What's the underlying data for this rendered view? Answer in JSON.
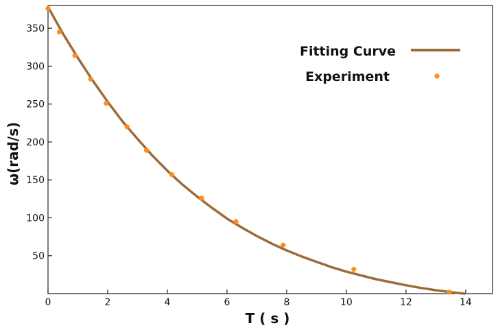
{
  "chart_data": {
    "type": "line",
    "xlabel": "T ( s )",
    "ylabel": "ω(rad/s)",
    "xlim": [
      0,
      14.9
    ],
    "ylim": [
      0,
      380
    ],
    "xticks": [
      0,
      2,
      4,
      6,
      8,
      10,
      12,
      14
    ],
    "yticks": [
      50,
      100,
      150,
      200,
      250,
      300,
      350
    ],
    "grid": false,
    "legend_position": "top-right",
    "colors": {
      "curve": "#9c6b3a",
      "points": "#ff8c1a"
    },
    "series": [
      {
        "name": "Fitting Curve",
        "kind": "line",
        "x": [
          0,
          0.5,
          1,
          1.5,
          2,
          2.5,
          3,
          3.5,
          4,
          4.5,
          5,
          5.5,
          6,
          6.5,
          7,
          7.5,
          8,
          8.5,
          9,
          9.5,
          10,
          10.5,
          11,
          11.5,
          12,
          12.5,
          13,
          13.5,
          13.95
        ],
        "y": [
          378,
          343,
          311,
          281,
          253,
          227,
          204,
          182,
          162,
          144,
          128,
          113,
          99,
          87,
          76,
          66,
          57,
          49,
          42,
          35,
          29,
          24,
          19,
          15,
          11,
          7.5,
          4.5,
          2,
          0
        ]
      },
      {
        "name": "Experiment",
        "kind": "scatter",
        "x": [
          0,
          0.38,
          0.9,
          1.43,
          1.95,
          2.65,
          3.3,
          4.15,
          5.15,
          6.3,
          7.88,
          10.25,
          13.45
        ],
        "y": [
          376,
          345,
          314,
          283,
          251,
          220,
          189,
          157,
          126,
          95,
          64,
          32,
          2
        ]
      }
    ]
  }
}
